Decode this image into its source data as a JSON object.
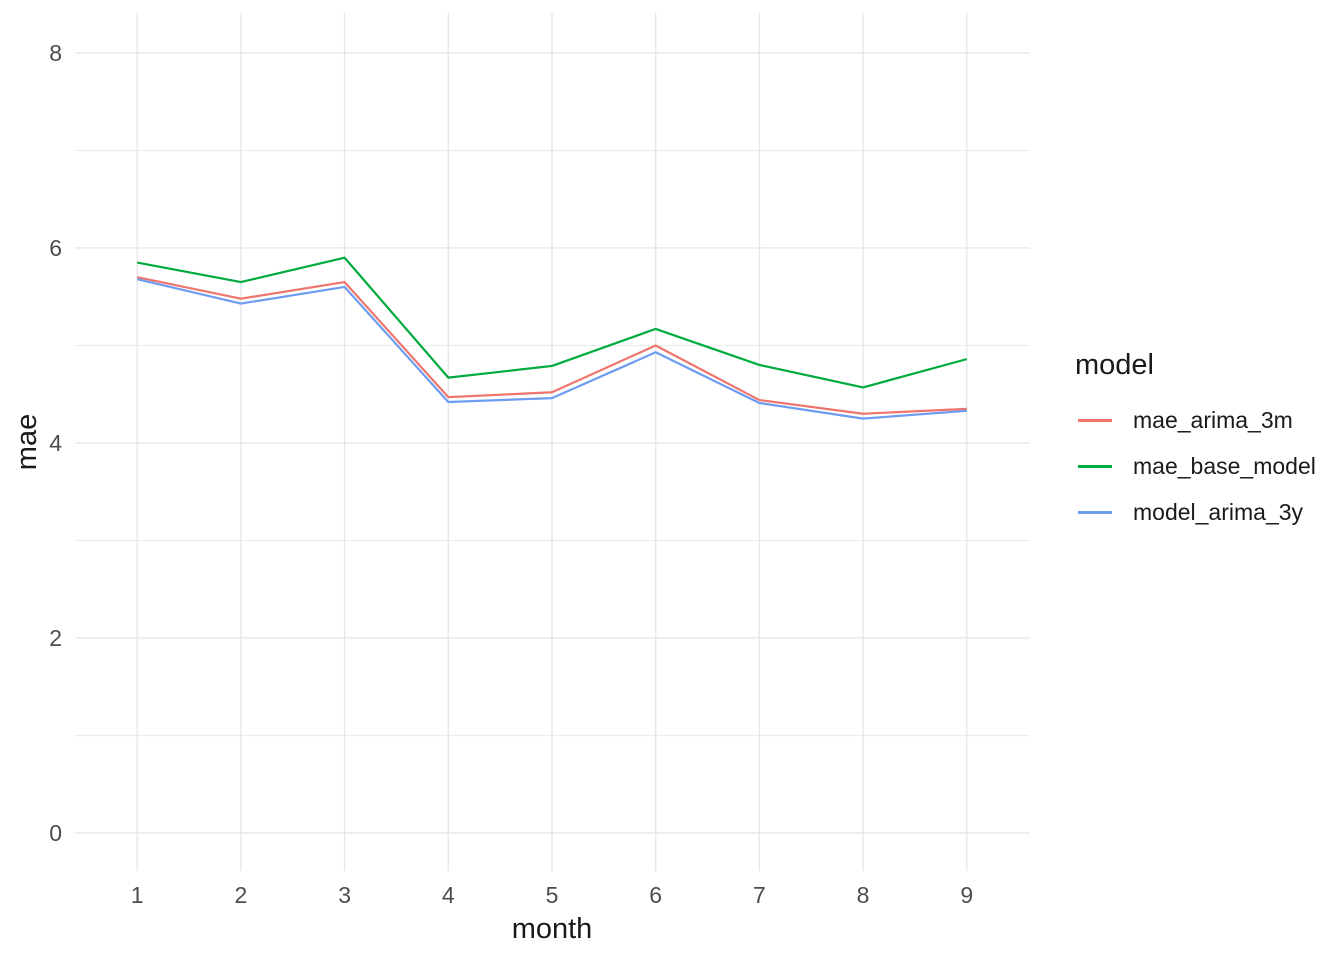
{
  "chart_data": {
    "type": "line",
    "title": "",
    "xlabel": "month",
    "ylabel": "mae",
    "x": [
      1,
      2,
      3,
      4,
      5,
      6,
      7,
      8,
      9
    ],
    "series": [
      {
        "name": "mae_arima_3m",
        "color": "#EE756D",
        "values": [
          5.7,
          5.48,
          5.65,
          4.47,
          4.52,
          5.0,
          4.44,
          4.3,
          4.35
        ]
      },
      {
        "name": "mae_base_model",
        "color": "#00AB3E",
        "values": [
          5.85,
          5.65,
          5.9,
          4.67,
          4.79,
          5.17,
          4.8,
          4.57,
          4.86
        ]
      },
      {
        "name": "model_arima_3y",
        "color": "#6D9CF1",
        "values": [
          5.68,
          5.43,
          5.6,
          4.42,
          4.46,
          4.93,
          4.41,
          4.25,
          4.33
        ]
      }
    ],
    "xticks": [
      1,
      2,
      3,
      4,
      5,
      6,
      7,
      8,
      9
    ],
    "yticks": [
      0,
      2,
      4,
      6,
      8
    ],
    "y_minor_ticks": [
      1,
      3,
      5,
      7
    ],
    "xlim": [
      0.4,
      9.61
    ],
    "ylim": [
      -0.39,
      8.41
    ],
    "grid": {
      "major_color": "#e7e7e7",
      "minor_color": "#ededed",
      "background": "#ffffff"
    },
    "axis_text_color": "#4d4d4d",
    "legend": {
      "title": "model",
      "position": "right",
      "entries": [
        "mae_arima_3m",
        "mae_base_model",
        "model_arima_3y"
      ]
    }
  }
}
